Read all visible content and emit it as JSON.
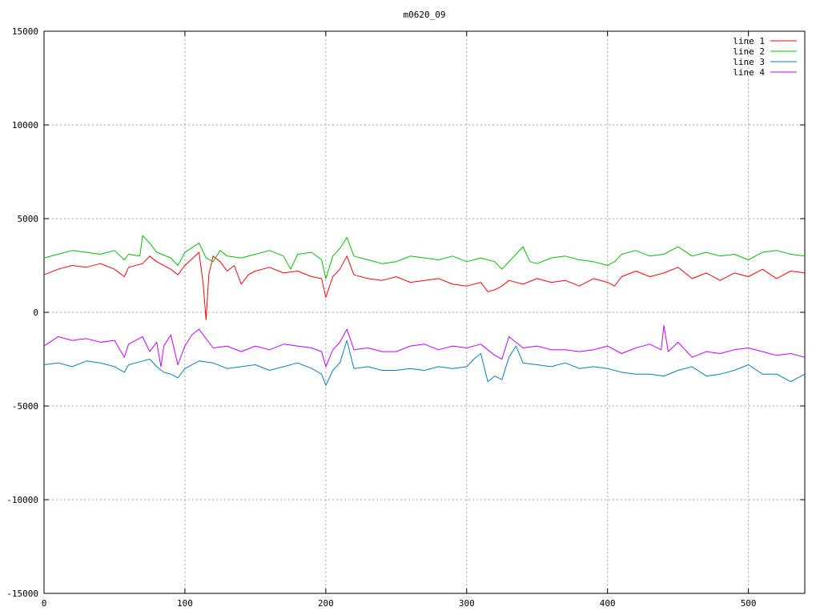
{
  "chart_data": {
    "type": "line",
    "title": "m0620_09",
    "xlabel": "",
    "ylabel": "",
    "xlim": [
      0,
      540
    ],
    "ylim": [
      -15000,
      15000
    ],
    "xticks": [
      0,
      100,
      200,
      300,
      400,
      500
    ],
    "yticks": [
      -15000,
      -10000,
      -5000,
      0,
      5000,
      10000,
      15000
    ],
    "grid": true,
    "legend_position": "top-right",
    "series": [
      {
        "name": "line 1",
        "color": "#ff0000",
        "x": [
          0,
          10,
          20,
          30,
          40,
          50,
          57,
          60,
          70,
          75,
          80,
          90,
          95,
          100,
          110,
          113,
          115,
          117,
          120,
          125,
          130,
          135,
          140,
          145,
          150,
          160,
          170,
          180,
          190,
          197,
          200,
          205,
          210,
          215,
          220,
          230,
          240,
          250,
          260,
          270,
          280,
          290,
          300,
          310,
          315,
          320,
          325,
          330,
          340,
          350,
          360,
          370,
          380,
          390,
          400,
          405,
          410,
          420,
          430,
          440,
          450,
          460,
          470,
          480,
          490,
          500,
          510,
          520,
          530,
          540
        ],
        "y": [
          2000,
          2300,
          2500,
          2400,
          2600,
          2300,
          1900,
          2400,
          2600,
          3000,
          2700,
          2300,
          2000,
          2500,
          3200,
          1500,
          -400,
          2000,
          3000,
          2700,
          2200,
          2500,
          1500,
          2000,
          2200,
          2400,
          2100,
          2200,
          1900,
          1800,
          800,
          1900,
          2300,
          3000,
          2000,
          1800,
          1700,
          1900,
          1600,
          1700,
          1800,
          1500,
          1400,
          1600,
          1100,
          1200,
          1400,
          1700,
          1500,
          1800,
          1600,
          1700,
          1400,
          1800,
          1600,
          1400,
          1900,
          2200,
          1900,
          2100,
          2400,
          1800,
          2100,
          1700,
          2100,
          1900,
          2300,
          1800,
          2200,
          2100
        ]
      },
      {
        "name": "line 2",
        "color": "#00c000",
        "x": [
          0,
          10,
          20,
          30,
          40,
          50,
          57,
          60,
          68,
          70,
          75,
          80,
          90,
          95,
          100,
          110,
          115,
          120,
          125,
          130,
          140,
          150,
          160,
          170,
          175,
          180,
          190,
          197,
          200,
          205,
          210,
          215,
          220,
          230,
          240,
          250,
          260,
          270,
          280,
          290,
          300,
          310,
          320,
          325,
          330,
          340,
          345,
          350,
          360,
          370,
          380,
          390,
          400,
          405,
          410,
          420,
          430,
          440,
          450,
          460,
          470,
          480,
          490,
          500,
          510,
          520,
          530,
          540
        ],
        "y": [
          2900,
          3100,
          3300,
          3200,
          3100,
          3300,
          2800,
          3100,
          3000,
          4100,
          3700,
          3200,
          2900,
          2500,
          3200,
          3700,
          2900,
          2700,
          3300,
          3000,
          2900,
          3100,
          3300,
          3000,
          2300,
          3100,
          3200,
          2800,
          1800,
          3000,
          3400,
          4000,
          3000,
          2800,
          2600,
          2700,
          3000,
          2900,
          2800,
          3000,
          2700,
          2900,
          2700,
          2300,
          2700,
          3500,
          2700,
          2600,
          2900,
          3000,
          2800,
          2700,
          2500,
          2700,
          3100,
          3300,
          3000,
          3100,
          3500,
          3000,
          3200,
          3000,
          3100,
          2800,
          3200,
          3300,
          3100,
          3000
        ]
      },
      {
        "name": "line 3",
        "color": "#0080c0",
        "x": [
          0,
          10,
          20,
          30,
          40,
          50,
          57,
          60,
          70,
          75,
          80,
          85,
          90,
          95,
          100,
          110,
          120,
          130,
          140,
          150,
          160,
          170,
          180,
          190,
          197,
          200,
          205,
          210,
          215,
          220,
          230,
          240,
          250,
          260,
          270,
          280,
          290,
          300,
          305,
          310,
          315,
          320,
          325,
          330,
          335,
          340,
          350,
          360,
          370,
          380,
          390,
          400,
          410,
          420,
          430,
          440,
          450,
          460,
          470,
          480,
          490,
          500,
          510,
          520,
          530,
          535,
          540
        ],
        "y": [
          -2800,
          -2700,
          -2900,
          -2600,
          -2700,
          -2900,
          -3200,
          -2800,
          -2600,
          -2500,
          -2900,
          -3200,
          -3300,
          -3500,
          -3000,
          -2600,
          -2700,
          -3000,
          -2900,
          -2800,
          -3100,
          -2900,
          -2700,
          -3000,
          -3300,
          -3900,
          -3100,
          -2700,
          -1500,
          -3000,
          -2900,
          -3100,
          -3100,
          -3000,
          -3100,
          -2900,
          -3000,
          -2900,
          -2500,
          -2200,
          -3700,
          -3400,
          -3600,
          -2400,
          -1800,
          -2700,
          -2800,
          -2900,
          -2700,
          -3000,
          -2900,
          -3000,
          -3200,
          -3300,
          -3300,
          -3400,
          -3100,
          -2900,
          -3400,
          -3300,
          -3100,
          -2800,
          -3300,
          -3300,
          -3700,
          -3500,
          -3300
        ]
      },
      {
        "name": "line 4",
        "color": "#c000ff",
        "x": [
          0,
          10,
          20,
          30,
          40,
          50,
          57,
          60,
          70,
          75,
          80,
          83,
          85,
          90,
          95,
          100,
          105,
          110,
          120,
          130,
          140,
          150,
          160,
          170,
          180,
          190,
          197,
          200,
          205,
          210,
          215,
          220,
          230,
          240,
          250,
          260,
          270,
          280,
          290,
          300,
          310,
          320,
          325,
          330,
          340,
          350,
          360,
          370,
          380,
          390,
          400,
          410,
          420,
          430,
          438,
          440,
          443,
          450,
          460,
          470,
          480,
          490,
          500,
          510,
          520,
          530,
          540
        ],
        "y": [
          -1800,
          -1300,
          -1500,
          -1400,
          -1600,
          -1500,
          -2400,
          -1700,
          -1300,
          -2100,
          -1600,
          -2900,
          -1800,
          -1200,
          -2800,
          -1800,
          -1200,
          -900,
          -1900,
          -1800,
          -2100,
          -1800,
          -2000,
          -1700,
          -1800,
          -1900,
          -2100,
          -2900,
          -2000,
          -1600,
          -900,
          -2000,
          -1900,
          -2100,
          -2100,
          -1800,
          -1700,
          -2000,
          -1800,
          -1900,
          -1700,
          -2300,
          -2500,
          -1300,
          -1900,
          -1800,
          -2000,
          -2000,
          -2100,
          -2000,
          -1800,
          -2200,
          -1900,
          -1700,
          -2000,
          -700,
          -2100,
          -1600,
          -2400,
          -2100,
          -2200,
          -2000,
          -1900,
          -2100,
          -2300,
          -2200,
          -2400
        ]
      }
    ]
  }
}
